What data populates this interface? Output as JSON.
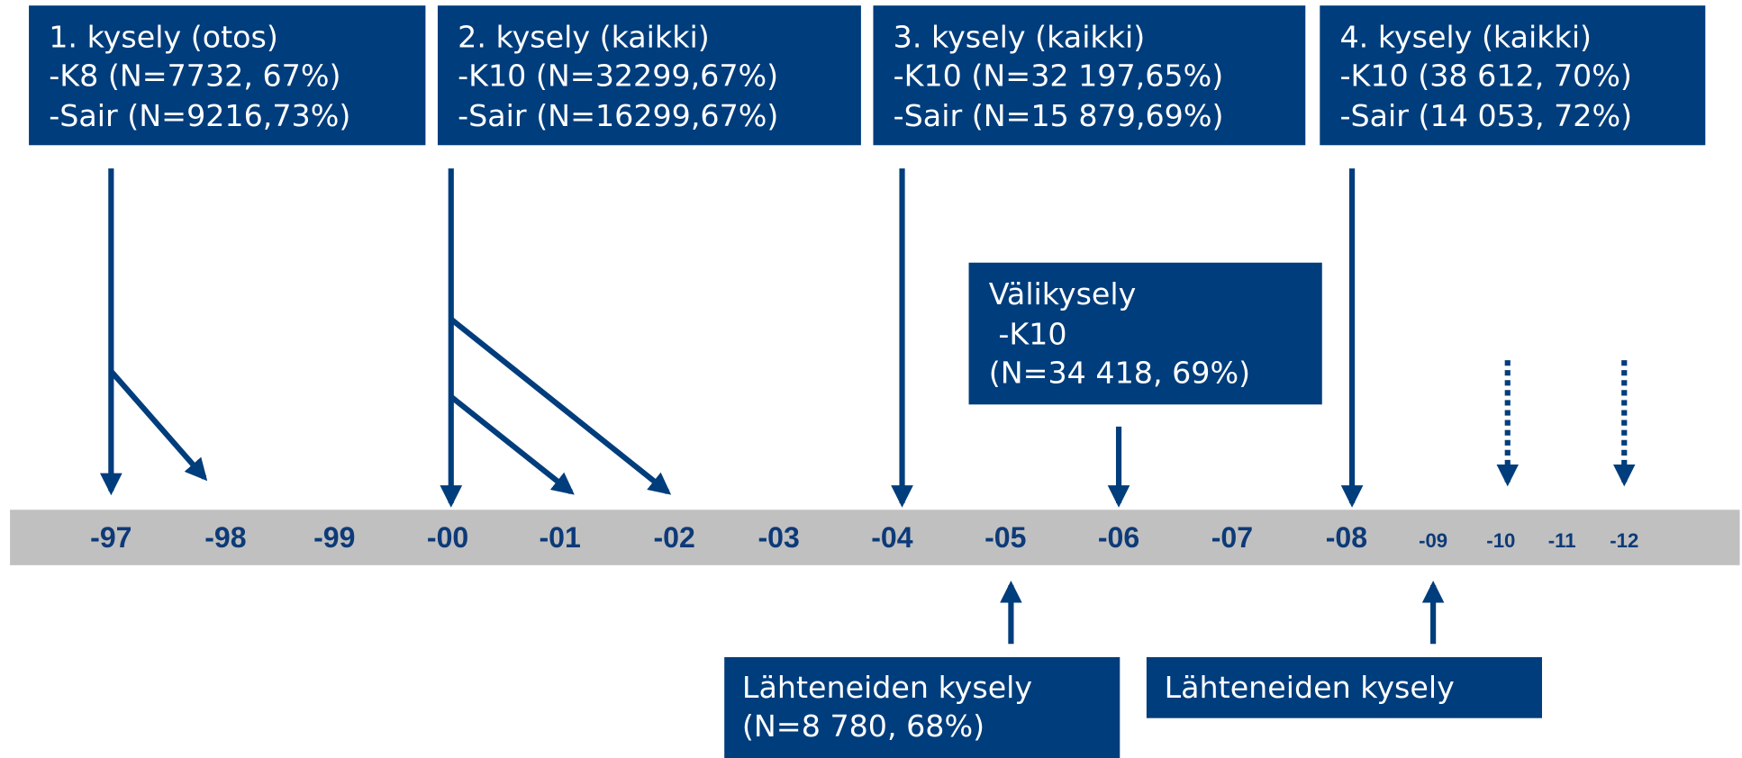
{
  "surveys": [
    {
      "lines": [
        "1. kysely (otos)",
        "-K8 (N=7732, 67%)",
        "-Sair (N=9216,73%)"
      ]
    },
    {
      "lines": [
        "2. kysely (kaikki)",
        "-K10 (N=32299,67%)",
        "-Sair (N=16299,67%)"
      ]
    },
    {
      "lines": [
        "3. kysely (kaikki)",
        "-K10 (N=32 197,65%)",
        "-Sair (N=15 879,69%)"
      ]
    },
    {
      "lines": [
        "4. kysely (kaikki)",
        "-K10 (38 612, 70%)",
        "-Sair (14 053, 72%)"
      ]
    }
  ],
  "interim": {
    "lines": [
      "Välikysely",
      " -K10",
      "(N=34 418, 69%)"
    ]
  },
  "leavers": [
    {
      "lines": [
        "Lähteneiden kysely",
        "(N=8 780, 68%)"
      ]
    },
    {
      "lines": [
        "Lähteneiden kysely"
      ]
    }
  ],
  "timeline": [
    "-97",
    "-98",
    "-99",
    "-00",
    "-01",
    "-02",
    "-03",
    "-04",
    "-05",
    "-06",
    "-07",
    "-08",
    "-09",
    "-10",
    "-11",
    "-12"
  ]
}
